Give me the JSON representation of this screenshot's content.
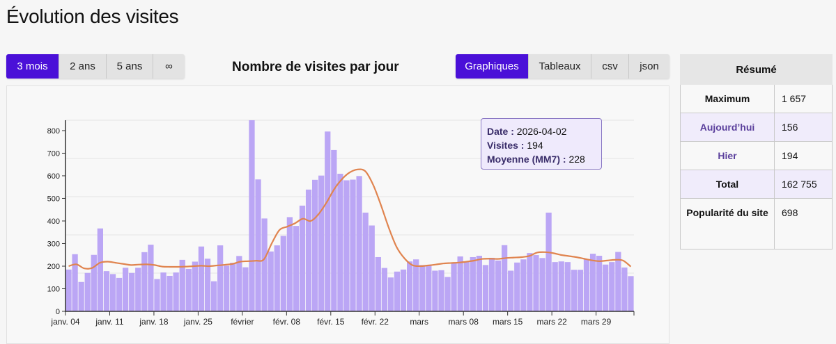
{
  "page_title": "Évolution des visites",
  "range_buttons": [
    {
      "label": "3 mois",
      "active": true
    },
    {
      "label": "2 ans"
    },
    {
      "label": "5 ans"
    },
    {
      "label": "∞"
    }
  ],
  "chart_title": "Nombre de visites par jour",
  "view_buttons": [
    {
      "label": "Graphiques",
      "active": true
    },
    {
      "label": "Tableaux"
    },
    {
      "label": "csv"
    },
    {
      "label": "json"
    }
  ],
  "tooltip": {
    "date_label": "Date :",
    "date": "2026-04-02",
    "visits_label": "Visites :",
    "visits": "194",
    "avg_label": "Moyenne (MM7) :",
    "avg": "228"
  },
  "summary": {
    "title": "Résumé",
    "rows": [
      {
        "label": "Maximum",
        "value": "1 657"
      },
      {
        "label": "Aujourd’hui",
        "value": "156"
      },
      {
        "label": "Hier",
        "value": "194"
      },
      {
        "label": "Total",
        "value": "162 755"
      },
      {
        "label": "Popularité du site",
        "value": "698"
      }
    ]
  },
  "colors": {
    "accent": "#4a10d8",
    "bar": "#bba6f5",
    "line": "#e0844f"
  },
  "chart_data": {
    "type": "bar",
    "title": "Nombre de visites par jour",
    "start_date": "2026-01-04",
    "end_date": "2026-04-03",
    "ylim": [
      0,
      846
    ],
    "yticks": [
      0,
      100,
      200,
      300,
      400,
      500,
      600,
      700,
      800
    ],
    "xticks": [
      {
        "day": 0,
        "label": "janv. 04"
      },
      {
        "day": 7,
        "label": "janv. 11"
      },
      {
        "day": 14,
        "label": "janv. 18"
      },
      {
        "day": 21,
        "label": "janv. 25"
      },
      {
        "day": 28,
        "label": "février"
      },
      {
        "day": 35,
        "label": "févr. 08"
      },
      {
        "day": 42,
        "label": "févr. 15"
      },
      {
        "day": 49,
        "label": "févr. 22"
      },
      {
        "day": 56,
        "label": "mars"
      },
      {
        "day": 63,
        "label": "mars 08"
      },
      {
        "day": 70,
        "label": "mars 15"
      },
      {
        "day": 77,
        "label": "mars 22"
      },
      {
        "day": 84,
        "label": "mars 29"
      }
    ],
    "series": [
      {
        "name": "Visites",
        "type": "bar",
        "values": [
          185,
          253,
          130,
          170,
          250,
          367,
          178,
          165,
          148,
          193,
          170,
          193,
          262,
          295,
          143,
          172,
          157,
          172,
          228,
          188,
          220,
          287,
          233,
          133,
          292,
          202,
          215,
          245,
          195,
          850,
          584,
          411,
          265,
          292,
          334,
          417,
          378,
          468,
          539,
          582,
          601,
          796,
          714,
          609,
          580,
          583,
          599,
          437,
          380,
          240,
          192,
          150,
          176,
          185,
          221,
          230,
          205,
          205,
          180,
          182,
          152,
          213,
          243,
          221,
          240,
          246,
          205,
          237,
          225,
          293,
          180,
          216,
          230,
          258,
          249,
          236,
          437,
          218,
          221,
          218,
          184,
          184,
          232,
          255,
          246,
          207,
          218,
          263,
          194,
          156
        ]
      },
      {
        "name": "Moyenne (MM7)",
        "type": "line",
        "values": [
          200,
          208,
          190,
          192,
          215,
          220,
          215,
          210,
          205,
          207,
          208,
          205,
          198,
          197,
          197,
          198,
          200,
          202,
          200,
          203,
          206,
          210,
          220,
          222,
          224,
          230,
          300,
          360,
          375,
          390,
          410,
          400,
          430,
          480,
          540,
          585,
          615,
          628,
          620,
          560,
          470,
          370,
          285,
          235,
          205,
          200,
          203,
          207,
          212,
          214,
          216,
          220,
          225,
          232,
          233,
          232,
          236,
          238,
          240,
          245,
          260,
          262,
          258,
          250,
          245,
          240,
          233,
          226,
          222,
          225,
          228,
          225,
          198
        ]
      }
    ]
  }
}
